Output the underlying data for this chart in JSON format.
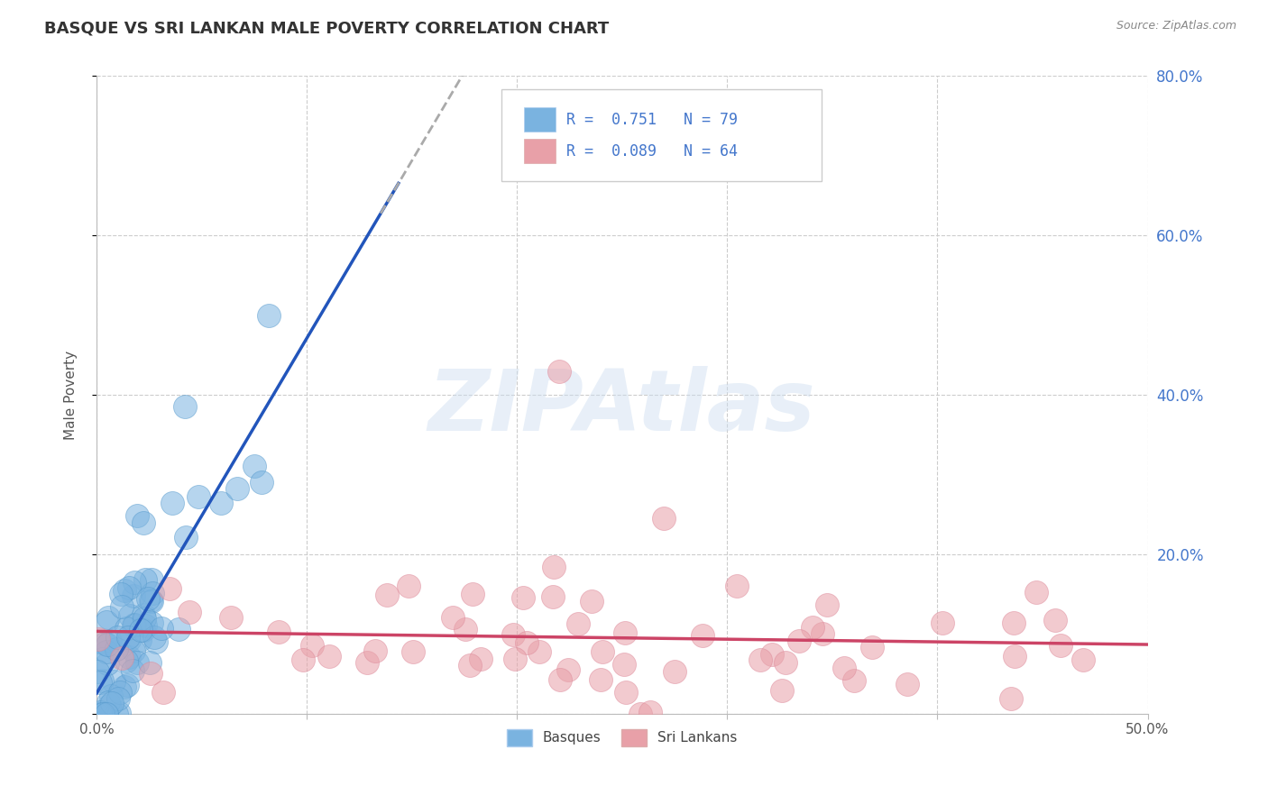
{
  "title": "BASQUE VS SRI LANKAN MALE POVERTY CORRELATION CHART",
  "source_text": "Source: ZipAtlas.com",
  "ylabel": "Male Poverty",
  "xlim": [
    0.0,
    0.5
  ],
  "ylim": [
    0.0,
    0.8
  ],
  "xtick_vals": [
    0.0,
    0.1,
    0.2,
    0.3,
    0.4,
    0.5
  ],
  "xtick_labels": [
    "0.0%",
    "",
    "",
    "",
    "",
    "50.0%"
  ],
  "ytick_vals": [
    0.0,
    0.2,
    0.4,
    0.6,
    0.8
  ],
  "ytick_labels_right": [
    "",
    "20.0%",
    "40.0%",
    "60.0%",
    "80.0%"
  ],
  "blue_color": "#7ab3e0",
  "pink_color": "#e8a0a8",
  "blue_line_color": "#2255bb",
  "pink_line_color": "#cc4466",
  "dashed_line_color": "#aaaaaa",
  "R_basque": 0.751,
  "N_basque": 79,
  "R_srilankan": 0.089,
  "N_srilankan": 64,
  "watermark": "ZIPAtlas",
  "legend_labels": [
    "Basques",
    "Sri Lankans"
  ],
  "title_fontsize": 13,
  "axis_label_fontsize": 11,
  "tick_fontsize": 11,
  "legend_fontsize": 12,
  "right_tick_color": "#4477cc"
}
